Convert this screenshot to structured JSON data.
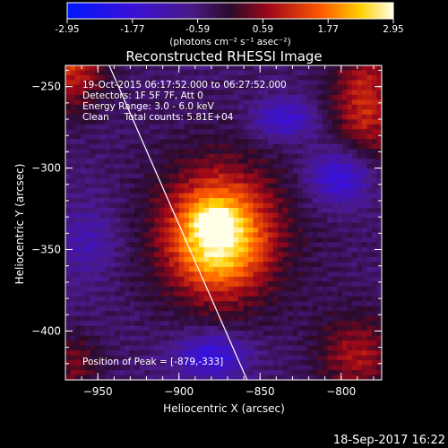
{
  "chart_data": {
    "type": "heatmap",
    "title": "Reconstructed RHESSI Image",
    "xlabel": "Heliocentric X (arcsec)",
    "ylabel": "Heliocentric Y (arcsec)",
    "xlim": [
      -970,
      -775
    ],
    "ylim": [
      -430,
      -237
    ],
    "xticks": [
      -950,
      -900,
      -850,
      -800
    ],
    "yticks": [
      -250,
      -300,
      -350,
      -400
    ],
    "colorbar": {
      "label": "(photons cm⁻² s⁻¹ asec⁻²)",
      "range": [
        -2.95,
        2.95
      ],
      "ticks": [
        "-2.95",
        "-1.77",
        "-0.59",
        "0.59",
        "1.77",
        "2.95"
      ]
    },
    "annotations": [
      "19-Oct-2015 06:17:52.000 to 06:27:52.000",
      "Detectors: 1F 5F 7F, Att 0",
      "Energy Range: 3.0 - 6.0 keV",
      "Clean     Total counts: 5.81E+04",
      "Position of Peak = [-879,-333]"
    ],
    "peak": [
      -879,
      -333
    ],
    "limb_line": [
      [
        -943,
        -237
      ],
      [
        -858,
        -430
      ]
    ]
  },
  "footer": {
    "timestamp": "18-Sep-2017 16:22"
  }
}
